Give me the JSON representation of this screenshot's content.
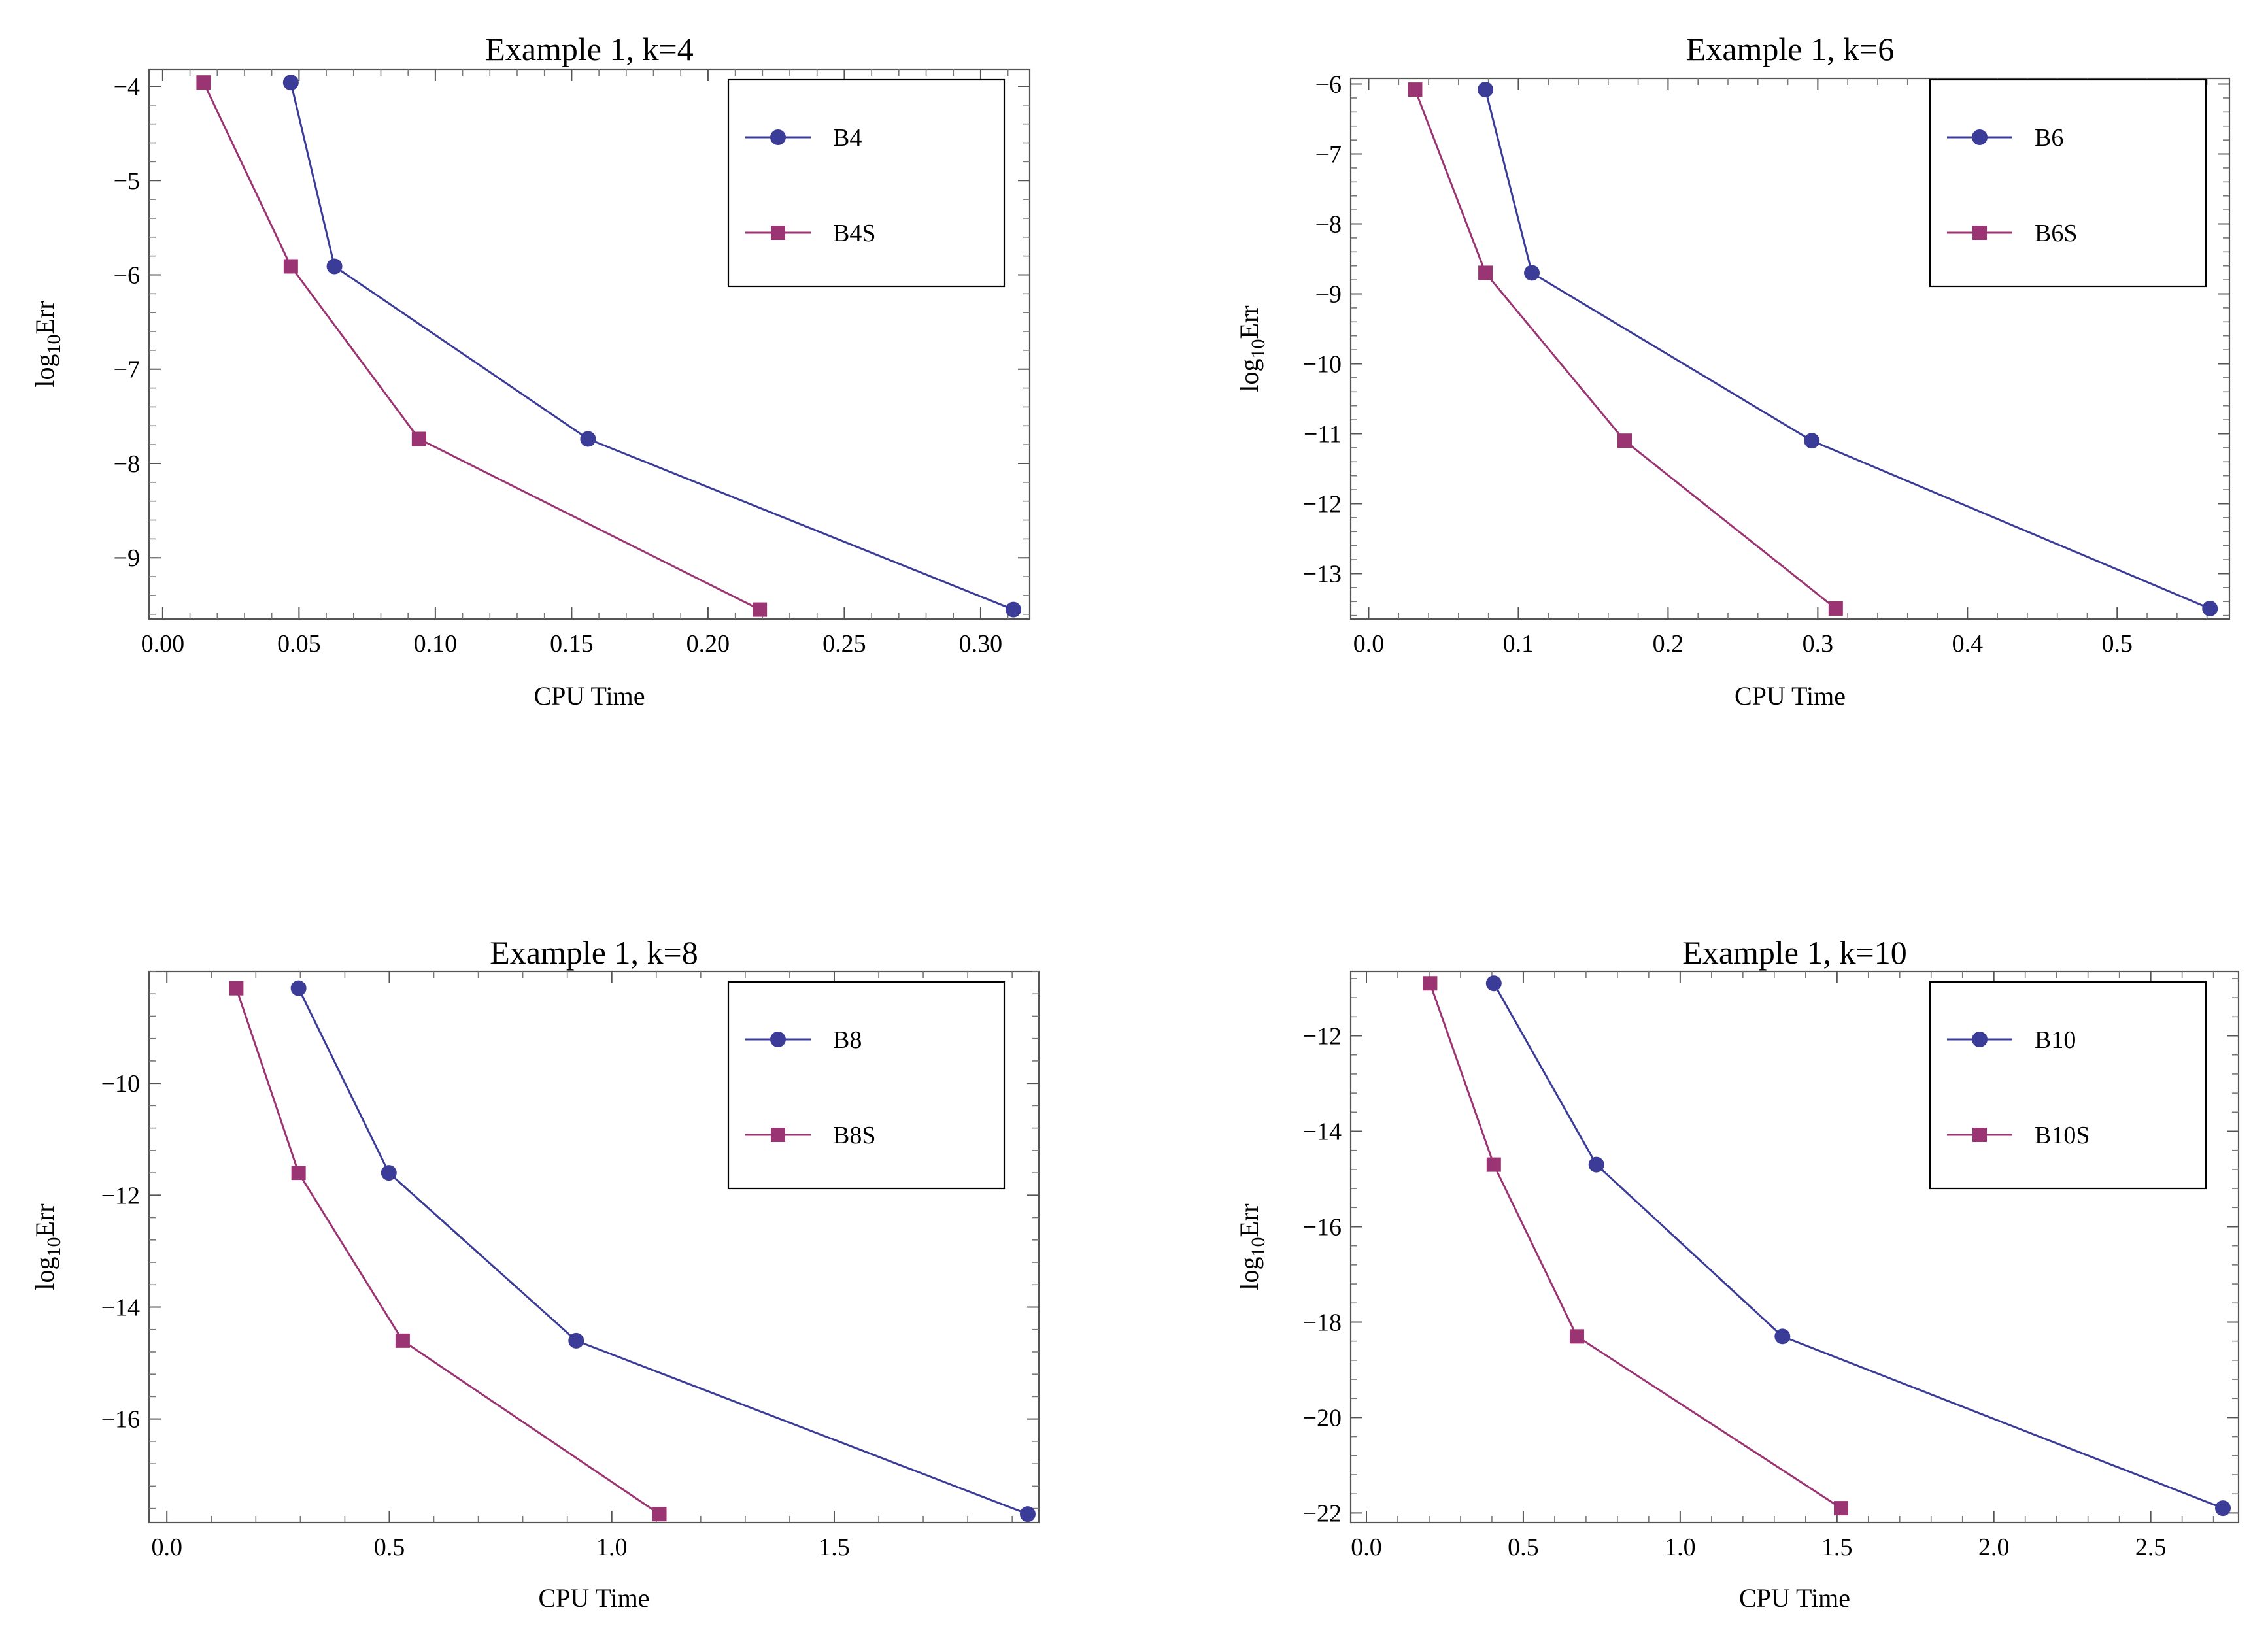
{
  "chart_data": [
    {
      "type": "line",
      "title": "Example 1, k=4",
      "xlabel": "CPU Time",
      "ylabel": "log10Err",
      "xlim": [
        -0.005,
        0.318
      ],
      "ylim": [
        -9.65,
        -3.82
      ],
      "xticks": [
        0.0,
        0.05,
        0.1,
        0.15,
        0.2,
        0.25,
        0.3
      ],
      "xtick_labels": [
        "0.00",
        "0.05",
        "0.10",
        "0.15",
        "0.20",
        "0.25",
        "0.30"
      ],
      "yticks": [
        -4,
        -5,
        -6,
        -7,
        -8,
        -9
      ],
      "ytick_labels": [
        "−4",
        "−5",
        "−6",
        "−7",
        "−8",
        "−9"
      ],
      "legend_position": "top-right",
      "series": [
        {
          "name": "B4",
          "marker": "circle",
          "color": "#3b3b98",
          "x": [
            0.047,
            0.063,
            0.156,
            0.312
          ],
          "y": [
            -3.96,
            -5.91,
            -7.74,
            -9.55
          ]
        },
        {
          "name": "B4S",
          "marker": "square",
          "color": "#9b3472",
          "x": [
            0.015,
            0.047,
            0.094,
            0.219
          ],
          "y": [
            -3.96,
            -5.91,
            -7.74,
            -9.55
          ]
        }
      ]
    },
    {
      "type": "line",
      "title": "Example 1, k=6",
      "xlabel": "CPU Time",
      "ylabel": "log10Err",
      "xlim": [
        -0.012,
        0.575
      ],
      "ylim": [
        -13.65,
        -5.92
      ],
      "xticks": [
        0.0,
        0.1,
        0.2,
        0.3,
        0.4,
        0.5
      ],
      "xtick_labels": [
        "0.0",
        "0.1",
        "0.2",
        "0.3",
        "0.4",
        "0.5"
      ],
      "yticks": [
        -6,
        -7,
        -8,
        -9,
        -10,
        -11,
        -12,
        -13
      ],
      "ytick_labels": [
        "−6",
        "−7",
        "−8",
        "−9",
        "−10",
        "−11",
        "−12",
        "−13"
      ],
      "legend_position": "top-right",
      "series": [
        {
          "name": "B6",
          "marker": "circle",
          "color": "#3b3b98",
          "x": [
            0.078,
            0.109,
            0.296,
            0.562
          ],
          "y": [
            -6.08,
            -8.7,
            -11.1,
            -13.5
          ]
        },
        {
          "name": "B6S",
          "marker": "square",
          "color": "#9b3472",
          "x": [
            0.031,
            0.078,
            0.171,
            0.312
          ],
          "y": [
            -6.08,
            -8.7,
            -11.1,
            -13.5
          ]
        }
      ]
    },
    {
      "type": "line",
      "title": "Example 1, k=8",
      "xlabel": "CPU Time",
      "ylabel": "log10Err",
      "xlim": [
        -0.04,
        1.96
      ],
      "ylim": [
        -17.85,
        -8.0
      ],
      "xticks": [
        0.0,
        0.5,
        1.0,
        1.5
      ],
      "xtick_labels": [
        "0.0",
        "0.5",
        "1.0",
        "1.5"
      ],
      "yticks": [
        -10,
        -12,
        -14,
        -16
      ],
      "ytick_labels": [
        "−10",
        "−12",
        "−14",
        "−16"
      ],
      "legend_position": "top-right",
      "series": [
        {
          "name": "B8",
          "marker": "circle",
          "color": "#3b3b98",
          "x": [
            0.296,
            0.499,
            0.92,
            1.935
          ],
          "y": [
            -8.3,
            -11.6,
            -14.6,
            -17.7
          ]
        },
        {
          "name": "B8S",
          "marker": "square",
          "color": "#9b3472",
          "x": [
            0.156,
            0.296,
            0.53,
            1.107
          ],
          "y": [
            -8.3,
            -11.6,
            -14.6,
            -17.7
          ]
        }
      ]
    },
    {
      "type": "line",
      "title": "Example 1, k=10",
      "xlabel": "CPU Time",
      "ylabel": "log10Err",
      "xlim": [
        -0.05,
        2.78
      ],
      "ylim": [
        -22.2,
        -10.65
      ],
      "xticks": [
        0.0,
        0.5,
        1.0,
        1.5,
        2.0,
        2.5
      ],
      "xtick_labels": [
        "0.0",
        "0.5",
        "1.0",
        "1.5",
        "2.0",
        "2.5"
      ],
      "yticks": [
        -12,
        -14,
        -16,
        -18,
        -20,
        -22
      ],
      "ytick_labels": [
        "−12",
        "−14",
        "−16",
        "−18",
        "−20",
        "−22"
      ],
      "legend_position": "top-right",
      "series": [
        {
          "name": "B10",
          "marker": "circle",
          "color": "#3b3b98",
          "x": [
            0.406,
            0.733,
            1.326,
            2.73
          ],
          "y": [
            -10.9,
            -14.7,
            -18.3,
            -21.9
          ]
        },
        {
          "name": "B10S",
          "marker": "square",
          "color": "#9b3472",
          "x": [
            0.203,
            0.406,
            0.671,
            1.513
          ],
          "y": [
            -10.9,
            -14.7,
            -18.3,
            -21.9
          ]
        }
      ]
    }
  ]
}
